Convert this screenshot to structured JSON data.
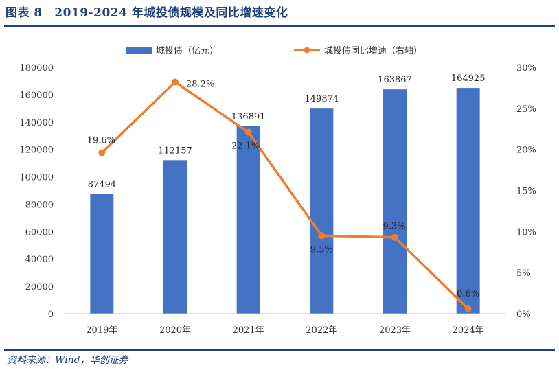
{
  "header": {
    "title": "图表 8　2019-2024 年城投债规模及同比增速变化"
  },
  "footer": {
    "source": "资料来源：Wind，华创证券"
  },
  "chart_data": {
    "type": "bar+line",
    "categories": [
      "2019年",
      "2020年",
      "2021年",
      "2022年",
      "2023年",
      "2024年"
    ],
    "series": [
      {
        "name": "城投债（亿元）",
        "type": "bar",
        "axis": "left",
        "color": "#4472c4",
        "values": [
          87494,
          112157,
          136891,
          149874,
          163867,
          164925
        ],
        "labels": [
          "87494",
          "112157",
          "136891",
          "149874",
          "163867",
          "164925"
        ]
      },
      {
        "name": "城投债同比增速（右轴）",
        "type": "line",
        "axis": "right",
        "color": "#ed7d31",
        "values": [
          19.6,
          28.2,
          22.1,
          9.5,
          9.3,
          0.6
        ],
        "labels": [
          "19.6%",
          "28.2%",
          "22.1%",
          "9.5%",
          "9.3%",
          "0.6%"
        ]
      }
    ],
    "y_left": {
      "ylim": [
        0,
        180000
      ],
      "ticks": [
        "0",
        "20000",
        "40000",
        "60000",
        "80000",
        "100000",
        "120000",
        "140000",
        "160000",
        "180000"
      ]
    },
    "y_right": {
      "ylim": [
        0,
        30
      ],
      "ticks": [
        "0%",
        "5%",
        "10%",
        "15%",
        "20%",
        "25%",
        "30%"
      ]
    },
    "grid": false,
    "legend_position": "top"
  }
}
